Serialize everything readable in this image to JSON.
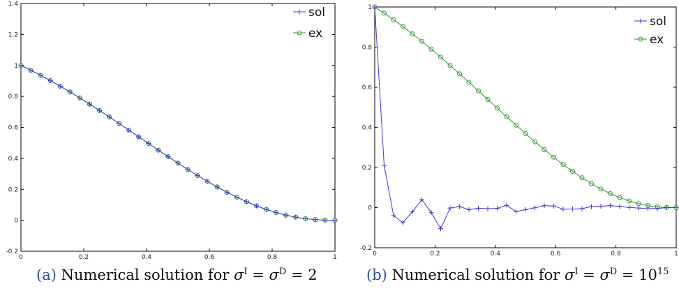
{
  "chart_data": [
    {
      "type": "line",
      "caption": {
        "tag": "(a)",
        "text": "Numerical solution for",
        "formula": "σ^I = σ^D = 2"
      },
      "xlim": [
        0,
        1
      ],
      "ylim": [
        -0.2,
        1.4
      ],
      "xticks": [
        "0",
        "0.2",
        "0.4",
        "0.6",
        "0.8",
        "1"
      ],
      "yticks": [
        "-0.2",
        "0",
        "0.2",
        "0.4",
        "0.6",
        "0.8",
        "1",
        "1.2",
        "1.4"
      ],
      "grid": false,
      "legend_position": "top-right",
      "series": [
        {
          "name": "sol",
          "marker": "plus",
          "color": "#3a3ae0",
          "x": [
            0,
            0.03125,
            0.0625,
            0.09375,
            0.125,
            0.15625,
            0.1875,
            0.21875,
            0.25,
            0.28125,
            0.3125,
            0.34375,
            0.375,
            0.40625,
            0.4375,
            0.46875,
            0.5,
            0.53125,
            0.5625,
            0.59375,
            0.625,
            0.65625,
            0.6875,
            0.71875,
            0.75,
            0.78125,
            0.8125,
            0.84375,
            0.875,
            0.90625,
            0.9375,
            0.96875,
            1
          ],
          "y": [
            1,
            0.969,
            0.936,
            0.902,
            0.866,
            0.829,
            0.79,
            0.75,
            0.709,
            0.667,
            0.625,
            0.582,
            0.539,
            0.496,
            0.453,
            0.411,
            0.369,
            0.328,
            0.289,
            0.251,
            0.215,
            0.181,
            0.149,
            0.12,
            0.093,
            0.07,
            0.05,
            0.033,
            0.02,
            0.01,
            0.004,
            0.001,
            0
          ]
        },
        {
          "name": "ex",
          "marker": "circle",
          "color": "#2e9a2e",
          "x": [
            0,
            0.03125,
            0.0625,
            0.09375,
            0.125,
            0.15625,
            0.1875,
            0.21875,
            0.25,
            0.28125,
            0.3125,
            0.34375,
            0.375,
            0.40625,
            0.4375,
            0.46875,
            0.5,
            0.53125,
            0.5625,
            0.59375,
            0.625,
            0.65625,
            0.6875,
            0.71875,
            0.75,
            0.78125,
            0.8125,
            0.84375,
            0.875,
            0.90625,
            0.9375,
            0.96875,
            1
          ],
          "y": [
            1,
            0.969,
            0.936,
            0.902,
            0.866,
            0.829,
            0.79,
            0.75,
            0.709,
            0.667,
            0.625,
            0.582,
            0.539,
            0.496,
            0.453,
            0.411,
            0.369,
            0.328,
            0.289,
            0.251,
            0.215,
            0.181,
            0.149,
            0.12,
            0.093,
            0.07,
            0.05,
            0.033,
            0.02,
            0.01,
            0.004,
            0.001,
            0
          ]
        }
      ]
    },
    {
      "type": "line",
      "caption": {
        "tag": "(b)",
        "text": "Numerical solution for",
        "formula": "σ^I = σ^D = 10^15"
      },
      "xlim": [
        0,
        1
      ],
      "ylim": [
        -0.2,
        1
      ],
      "xticks": [
        "0",
        "0.2",
        "0.4",
        "0.6",
        "0.8",
        "1"
      ],
      "yticks": [
        "-0.2",
        "0",
        "0.2",
        "0.4",
        "0.6",
        "0.8",
        "1"
      ],
      "grid": false,
      "legend_position": "top-right",
      "series": [
        {
          "name": "sol",
          "marker": "plus",
          "color": "#3a3ae0",
          "x": [
            0,
            0.03125,
            0.0625,
            0.09375,
            0.125,
            0.15625,
            0.1875,
            0.21875,
            0.25,
            0.28125,
            0.3125,
            0.34375,
            0.375,
            0.40625,
            0.4375,
            0.46875,
            0.5,
            0.53125,
            0.5625,
            0.59375,
            0.625,
            0.65625,
            0.6875,
            0.71875,
            0.75,
            0.78125,
            0.8125,
            0.84375,
            0.875,
            0.90625,
            0.9375,
            0.96875,
            1
          ],
          "y": [
            1,
            0.21,
            -0.04,
            -0.075,
            -0.02,
            0.04,
            -0.025,
            -0.105,
            -0.002,
            0.005,
            -0.01,
            -0.003,
            -0.005,
            -0.004,
            0.012,
            -0.02,
            -0.01,
            -0.001,
            0.01,
            0.008,
            -0.008,
            -0.007,
            -0.005,
            0.005,
            0.007,
            0.01,
            0.006,
            0.001,
            -0.002,
            -0.005,
            -0.004,
            0,
            0
          ]
        },
        {
          "name": "ex",
          "marker": "circle",
          "color": "#2e9a2e",
          "x": [
            0,
            0.03125,
            0.0625,
            0.09375,
            0.125,
            0.15625,
            0.1875,
            0.21875,
            0.25,
            0.28125,
            0.3125,
            0.34375,
            0.375,
            0.40625,
            0.4375,
            0.46875,
            0.5,
            0.53125,
            0.5625,
            0.59375,
            0.625,
            0.65625,
            0.6875,
            0.71875,
            0.75,
            0.78125,
            0.8125,
            0.84375,
            0.875,
            0.90625,
            0.9375,
            0.96875,
            1
          ],
          "y": [
            1,
            0.969,
            0.936,
            0.902,
            0.866,
            0.829,
            0.79,
            0.75,
            0.709,
            0.667,
            0.625,
            0.582,
            0.539,
            0.496,
            0.453,
            0.411,
            0.369,
            0.328,
            0.289,
            0.251,
            0.215,
            0.181,
            0.149,
            0.12,
            0.093,
            0.07,
            0.05,
            0.033,
            0.02,
            0.01,
            0.004,
            0.001,
            0
          ]
        }
      ]
    }
  ]
}
